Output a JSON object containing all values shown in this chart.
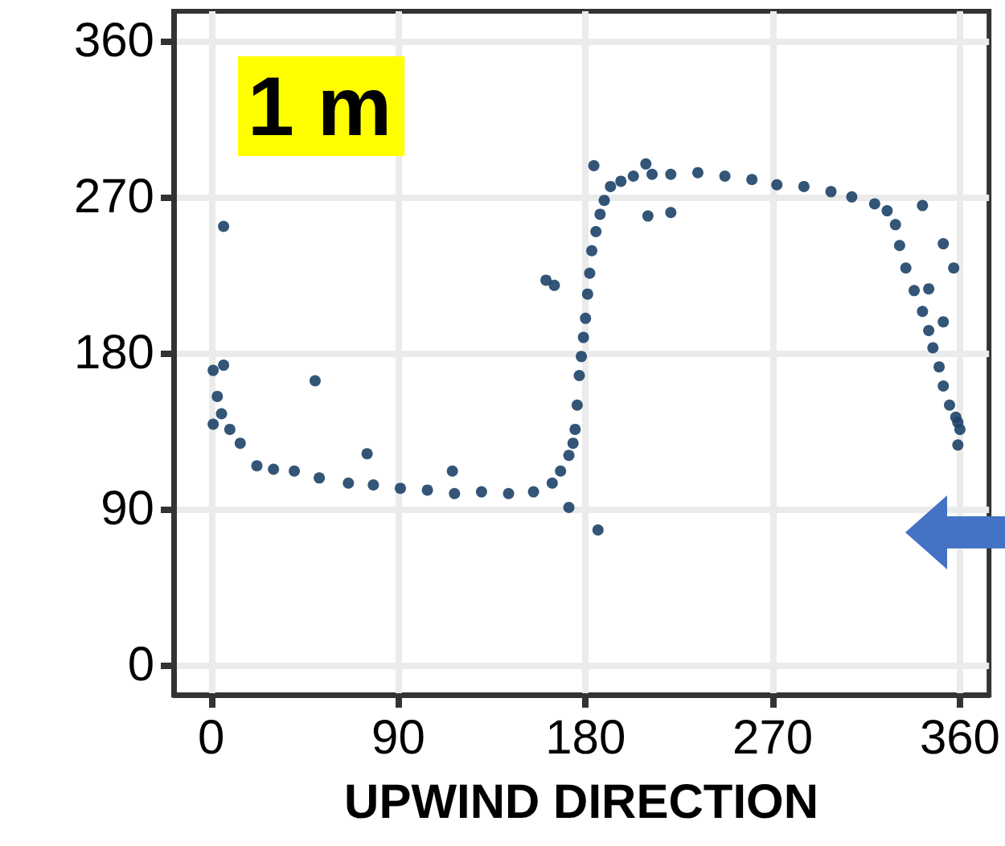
{
  "chart_data": {
    "type": "scatter",
    "xlabel": "UPWIND DIRECTION",
    "annotations": [
      "1 m"
    ],
    "color": "#1d4268",
    "marker": "circle",
    "grid": true,
    "x": [
      1,
      1,
      3,
      5,
      9,
      14,
      22,
      30,
      40,
      52,
      66,
      78,
      91,
      104,
      117,
      130,
      143,
      155,
      164,
      168,
      172,
      174,
      175,
      176,
      177,
      178,
      179,
      180,
      181,
      182,
      183,
      185,
      187,
      189,
      192,
      197,
      203,
      212,
      221,
      234,
      247,
      260,
      272,
      285,
      298,
      308,
      319,
      325,
      329,
      331,
      334,
      338,
      342,
      345,
      347,
      350,
      352,
      355,
      358,
      359,
      360,
      6,
      50,
      161,
      165,
      186,
      184,
      209,
      210,
      221,
      352,
      357,
      359,
      342,
      75,
      6,
      172,
      116,
      345,
      352
    ],
    "values": [
      170,
      139,
      155,
      145,
      136,
      128,
      115,
      113,
      112,
      108,
      105,
      104,
      102,
      101,
      99,
      100,
      99,
      100,
      105,
      112,
      121,
      128,
      136,
      150,
      167,
      178,
      189,
      200,
      214,
      226,
      239,
      250,
      260,
      268,
      276,
      279,
      282,
      283,
      283,
      284,
      282,
      280,
      277,
      276,
      273,
      270,
      266,
      262,
      254,
      242,
      229,
      216,
      204,
      193,
      183,
      172,
      161,
      150,
      143,
      140,
      136,
      253,
      164,
      222,
      219,
      78,
      288,
      289,
      259,
      261,
      243,
      229,
      127,
      265,
      122,
      173,
      91,
      112,
      217,
      198
    ],
    "xlim": [
      -18,
      374
    ],
    "ylim": [
      -17,
      377
    ],
    "xticks": [
      0,
      90,
      180,
      270,
      360
    ],
    "yticks": [
      0,
      90,
      180,
      270,
      360
    ]
  }
}
